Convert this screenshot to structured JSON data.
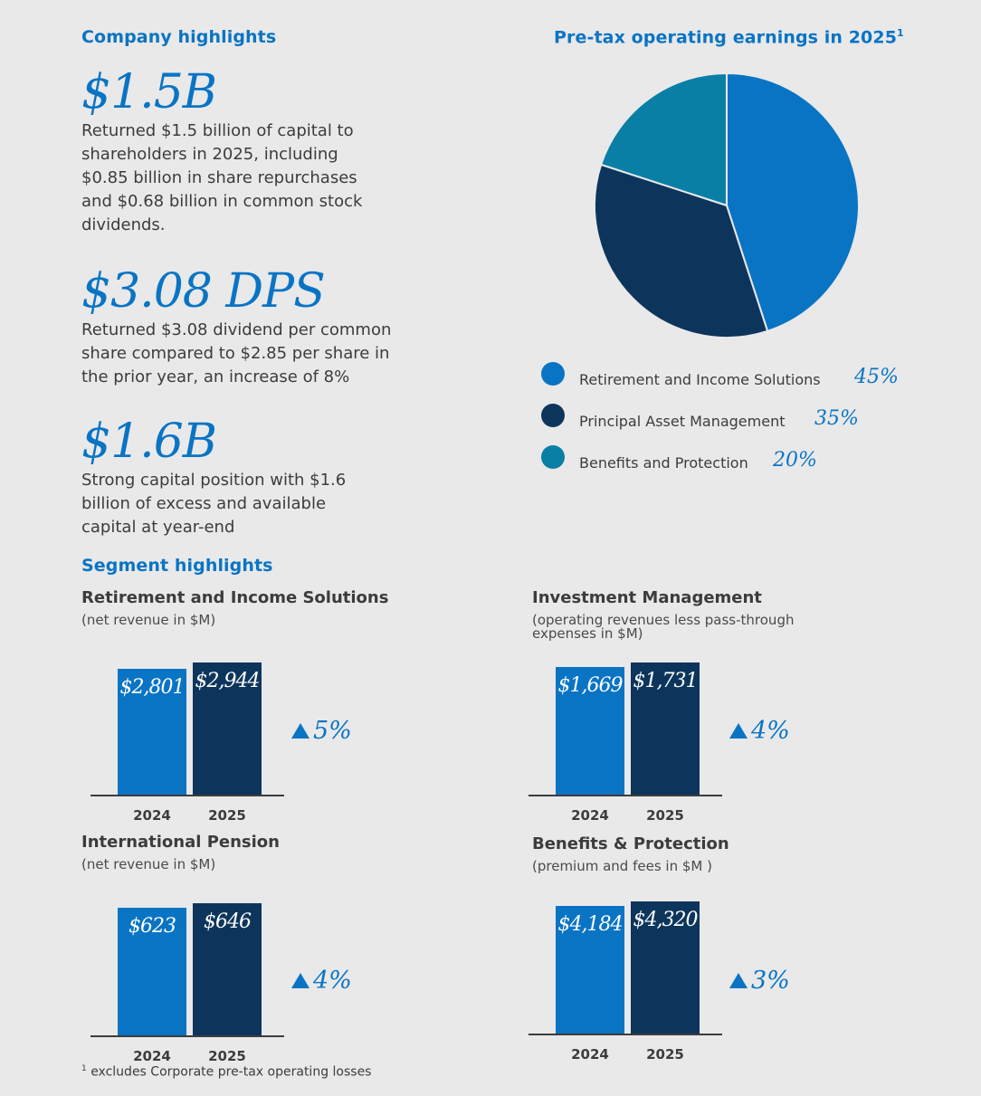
{
  "company": {
    "heading": "Company highlights",
    "highlights": [
      {
        "value": "$1.5B",
        "text": [
          "Returned $1.5 billion of capital to",
          "shareholders in 2025, including",
          "$0.85 billion in share repurchases",
          "and $0.68 billion in common stock",
          "dividends."
        ]
      },
      {
        "value": "$3.08 DPS",
        "text": [
          "Returned $3.08 dividend per common",
          "share compared to $2.85 per share in",
          "the prior year, an increase of 8%"
        ]
      },
      {
        "value": "$1.6B",
        "text": [
          "Strong capital position with $1.6",
          "billion of excess and available",
          "capital at year-end"
        ]
      }
    ]
  },
  "segment_heading": "Segment highlights",
  "footnote": {
    "mark": "1",
    "text": "excludes Corporate pre-tax operating losses"
  },
  "chart_data": [
    {
      "type": "pie",
      "title": "Pre-tax operating earnings in 2025",
      "title_mark": "1",
      "slices": [
        {
          "label": "Retirement and Income Solutions",
          "value": 45,
          "display": "45%",
          "color": "#0a74c4"
        },
        {
          "label": "Principal Asset Management",
          "value": 35,
          "display": "35%",
          "color": "#0d355c"
        },
        {
          "label": "Benefits and Protection",
          "value": 20,
          "display": "20%",
          "color": "#0a7fa6"
        }
      ]
    },
    {
      "type": "bar",
      "title": "Retirement and Income Solutions",
      "subtitle": [
        "(net revenue in $M)"
      ],
      "categories": [
        "2024",
        "2025"
      ],
      "values": [
        2801,
        2944
      ],
      "labels": [
        "$2,801",
        "$2,944"
      ],
      "change": "5%",
      "colors": [
        "#0a74c4",
        "#0d355c"
      ]
    },
    {
      "type": "bar",
      "title": "Investment Management",
      "subtitle": [
        "(operating revenues less pass-through",
        "expenses in $M)"
      ],
      "categories": [
        "2024",
        "2025"
      ],
      "values": [
        1669,
        1731
      ],
      "labels": [
        "$1,669",
        "$1,731"
      ],
      "change": "4%",
      "colors": [
        "#0a74c4",
        "#0d355c"
      ]
    },
    {
      "type": "bar",
      "title": "International Pension",
      "subtitle": [
        "(net revenue in $M)"
      ],
      "categories": [
        "2024",
        "2025"
      ],
      "values": [
        623,
        646
      ],
      "labels": [
        "$623",
        "$646"
      ],
      "change": "4%",
      "colors": [
        "#0a74c4",
        "#0d355c"
      ]
    },
    {
      "type": "bar",
      "title": "Benefits & Protection",
      "subtitle": [
        "(premium and fees in $M )"
      ],
      "categories": [
        "2024",
        "2025"
      ],
      "values": [
        4184,
        4320
      ],
      "labels": [
        "$4,184",
        "$4,320"
      ],
      "change": "3%",
      "colors": [
        "#0a74c4",
        "#0d355c"
      ]
    }
  ]
}
